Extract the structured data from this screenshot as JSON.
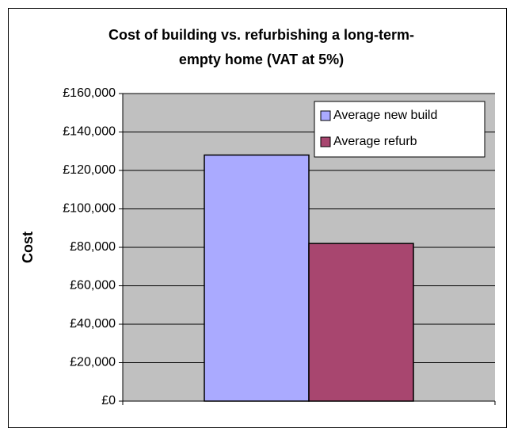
{
  "chart_data": {
    "type": "bar",
    "title": [
      "Cost of building vs. refurbishing a long-term-",
      "empty home (VAT at 5%)"
    ],
    "y_label": "Cost",
    "categories": [
      null
    ],
    "series": [
      {
        "name": "Average new build",
        "color": "#aaaaff",
        "values": [
          128000
        ]
      },
      {
        "name": "Average refurb",
        "color": "#a8466f",
        "values": [
          82000
        ]
      }
    ],
    "ylim": [
      0,
      160000
    ],
    "yticks": [
      {
        "value": 0,
        "label": "£0"
      },
      {
        "value": 20000,
        "label": "£20,000"
      },
      {
        "value": 40000,
        "label": "£40,000"
      },
      {
        "value": 60000,
        "label": "£60,000"
      },
      {
        "value": 80000,
        "label": "£80,000"
      },
      {
        "value": 100000,
        "label": "£100,000"
      },
      {
        "value": 120000,
        "label": "£120,000"
      },
      {
        "value": 140000,
        "label": "£140,000"
      },
      {
        "value": 160000,
        "label": "£160,000"
      }
    ],
    "grid": true,
    "plot_background": "#c0c0c0",
    "legend": "upper right"
  }
}
